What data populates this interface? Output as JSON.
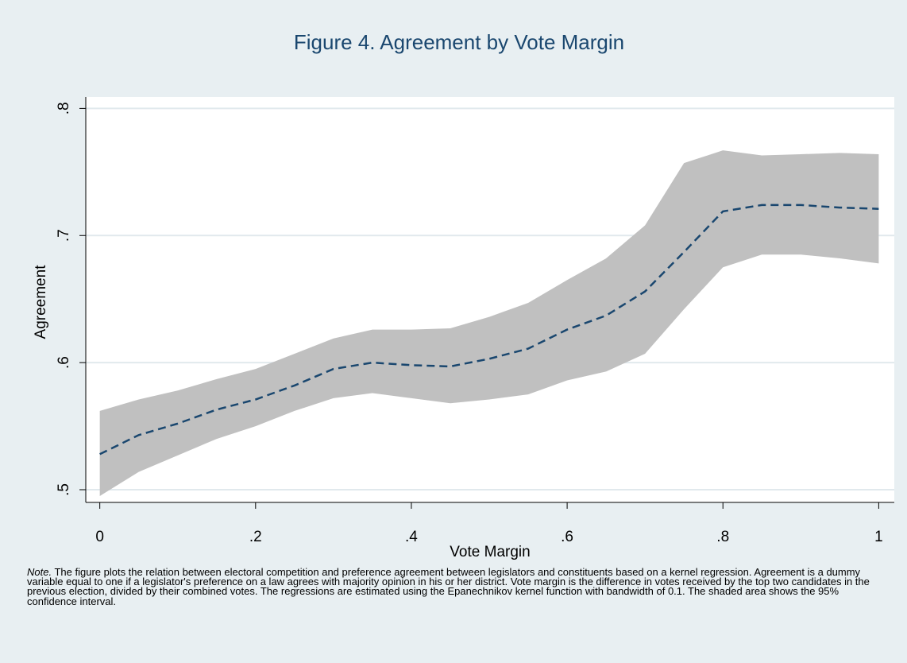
{
  "chart_data": {
    "type": "line",
    "title": "Figure 4. Agreement by Vote Margin",
    "xlabel": "Vote Margin",
    "ylabel": "Agreement",
    "x": [
      0,
      0.05,
      0.1,
      0.15,
      0.2,
      0.25,
      0.3,
      0.35,
      0.4,
      0.45,
      0.5,
      0.55,
      0.6,
      0.65,
      0.7,
      0.75,
      0.8,
      0.85,
      0.9,
      0.95,
      1
    ],
    "values": [
      0.528,
      0.543,
      0.552,
      0.563,
      0.571,
      0.582,
      0.595,
      0.6,
      0.598,
      0.597,
      0.603,
      0.611,
      0.626,
      0.637,
      0.656,
      0.687,
      0.719,
      0.724,
      0.724,
      0.722,
      0.721
    ],
    "upper": [
      0.562,
      0.571,
      0.578,
      0.587,
      0.595,
      0.607,
      0.619,
      0.626,
      0.626,
      0.627,
      0.636,
      0.647,
      0.665,
      0.682,
      0.708,
      0.757,
      0.767,
      0.763,
      0.764,
      0.765,
      0.764
    ],
    "lower": [
      0.495,
      0.514,
      0.527,
      0.54,
      0.55,
      0.562,
      0.572,
      0.576,
      0.572,
      0.568,
      0.571,
      0.575,
      0.586,
      0.593,
      0.607,
      0.642,
      0.675,
      0.685,
      0.685,
      0.682,
      0.678
    ],
    "color": "#1a476f",
    "band_color": "#c0c0c0",
    "xlim": [
      -0.018,
      1.02
    ],
    "ylim": [
      0.49,
      0.809
    ],
    "xticks": [
      0,
      {
        "value": 0.2,
        "label": ".2"
      },
      {
        "value": 0.4,
        "label": ".4"
      },
      {
        "value": 0.6,
        "label": ".6"
      },
      {
        "value": 0.8,
        "label": ".8"
      },
      1
    ],
    "yticks": [
      {
        "value": 0.5,
        "label": ".5"
      },
      {
        "value": 0.6,
        "label": ".6"
      },
      {
        "value": 0.7,
        "label": ".7"
      },
      {
        "value": 0.8,
        "label": ".8"
      }
    ],
    "grid": true,
    "note_label": "Note.",
    "note": "The figure plots the relation between electoral competition and preference agreement between legislators and constituents based on a kernel regression. Agreement is a dummy variable equal to one if a legislator's preference on a law agrees with majority opinion in his or her district. Vote margin is the difference in votes received by the top two candidates in the previous election, divided by their combined votes. The regressions are estimated using the Epanechnikov kernel function with bandwidth of 0.1. The shaded area shows the 95% confidence interval."
  }
}
